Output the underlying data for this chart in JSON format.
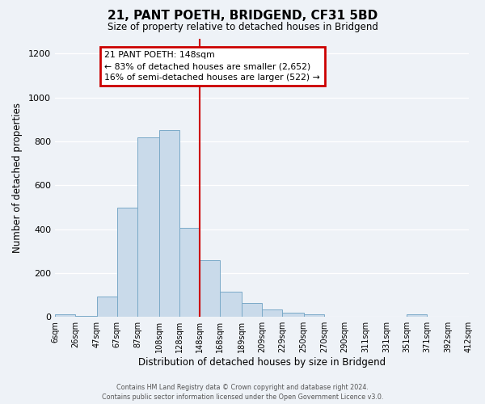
{
  "title": "21, PANT POETH, BRIDGEND, CF31 5BD",
  "subtitle": "Size of property relative to detached houses in Bridgend",
  "xlabel": "Distribution of detached houses by size in Bridgend",
  "ylabel": "Number of detached properties",
  "bar_color": "#c9daea",
  "bar_edge_color": "#7aaac8",
  "vline_x": 148,
  "vline_color": "#cc0000",
  "annotation_title": "21 PANT POETH: 148sqm",
  "annotation_line1": "← 83% of detached houses are smaller (2,652)",
  "annotation_line2": "16% of semi-detached houses are larger (522) →",
  "annotation_box_color": "#cc0000",
  "bin_edges": [
    6,
    26,
    47,
    67,
    87,
    108,
    128,
    148,
    168,
    189,
    209,
    229,
    250,
    270,
    290,
    311,
    331,
    351,
    371,
    392,
    412
  ],
  "bar_heights": [
    10,
    5,
    93,
    497,
    820,
    850,
    405,
    258,
    115,
    65,
    35,
    20,
    13,
    0,
    0,
    0,
    0,
    10,
    0,
    0
  ],
  "ylim": [
    0,
    1270
  ],
  "yticks": [
    0,
    200,
    400,
    600,
    800,
    1000,
    1200
  ],
  "background_color": "#eef2f7",
  "grid_color": "#ffffff",
  "footer_line1": "Contains HM Land Registry data © Crown copyright and database right 2024.",
  "footer_line2": "Contains public sector information licensed under the Open Government Licence v3.0."
}
